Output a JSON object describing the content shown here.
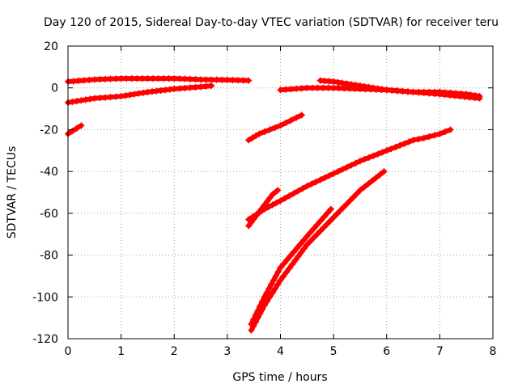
{
  "chart_data": {
    "type": "scatter",
    "title": "Day 120 of 2015, Sidereal Day-to-day VTEC variation (SDTVAR) for receiver teru",
    "xlabel": "GPS time / hours",
    "ylabel": "SDTVAR / TECUs",
    "xlim": [
      0,
      8
    ],
    "ylim": [
      -120,
      20
    ],
    "xticks": [
      "0",
      "1",
      "2",
      "3",
      "4",
      "5",
      "6",
      "7",
      "8"
    ],
    "yticks": [
      "20",
      "0",
      "-20",
      "-40",
      "-60",
      "-80",
      "-100",
      "-120"
    ],
    "grid": true,
    "legend": "none",
    "series_color": "#ff0000",
    "series": [
      {
        "x": [
          0.0,
          0.5,
          1.0,
          1.5,
          2.0,
          2.5,
          3.0,
          3.4
        ],
        "y": [
          3,
          4,
          4.5,
          4.5,
          4.5,
          4,
          3.8,
          3.5
        ]
      },
      {
        "x": [
          0.0,
          0.5,
          1.0,
          1.5,
          2.0,
          2.5,
          2.7
        ],
        "y": [
          -7,
          -5,
          -4,
          -2,
          -0.5,
          0.5,
          1
        ]
      },
      {
        "x": [
          0.0,
          0.25
        ],
        "y": [
          -22,
          -18
        ]
      },
      {
        "x": [
          4.75,
          5.0,
          5.5,
          6.0,
          6.5,
          7.0,
          7.5,
          7.75
        ],
        "y": [
          3.5,
          3,
          1,
          -1,
          -2,
          -2,
          -3,
          -4
        ]
      },
      {
        "x": [
          4.0,
          4.5,
          5.0,
          5.5,
          6.0,
          6.5,
          7.0,
          7.75
        ],
        "y": [
          -1,
          0,
          0,
          -0.5,
          -1,
          -2,
          -3,
          -5
        ]
      },
      {
        "x": [
          3.4,
          3.6,
          3.8,
          4.0,
          4.2,
          4.4
        ],
        "y": [
          -25,
          -22,
          -20,
          -18,
          -15.5,
          -13
        ]
      },
      {
        "x": [
          3.4,
          3.7,
          4.0,
          4.5,
          5.0,
          5.5,
          6.0,
          6.5,
          6.7,
          7.0,
          7.2
        ],
        "y": [
          -63,
          -58,
          -54,
          -47,
          -41,
          -35,
          -30,
          -25,
          -24,
          -22,
          -20
        ]
      },
      {
        "x": [
          3.4,
          3.55,
          3.7,
          3.85,
          3.95
        ],
        "y": [
          -66,
          -61,
          -56,
          -51,
          -49
        ]
      },
      {
        "x": [
          3.45,
          3.7,
          4.0,
          4.5,
          4.95
        ],
        "y": [
          -113,
          -100,
          -86,
          -71,
          -58
        ]
      },
      {
        "x": [
          3.45,
          3.7,
          4.0,
          4.5,
          5.0,
          5.5,
          5.95
        ],
        "y": [
          -116,
          -104,
          -92,
          -75,
          -62,
          -49,
          -40
        ]
      }
    ]
  }
}
